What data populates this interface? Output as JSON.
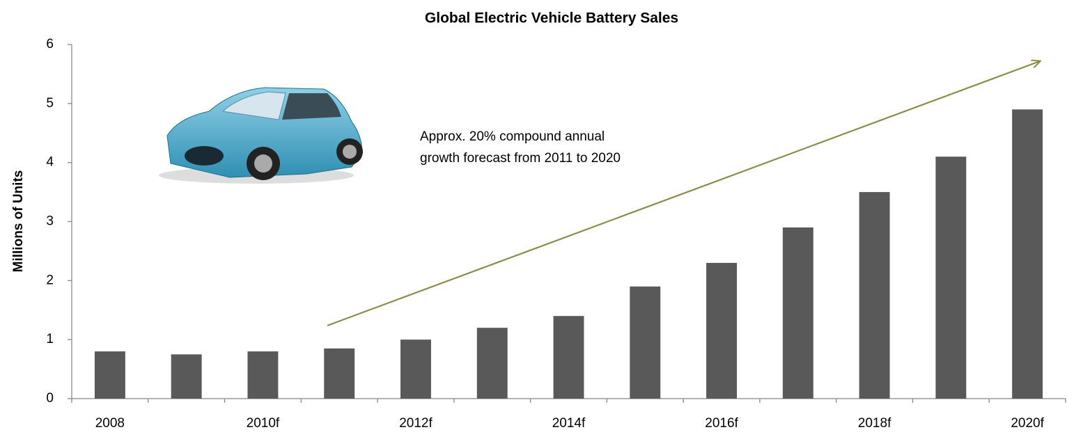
{
  "chart_data": {
    "type": "bar",
    "title": "Global Electric Vehicle Battery Sales",
    "y_label": "Millions of Units",
    "annotation": [
      "Approx. 20% compound annual",
      "growth forecast from 2011 to 2020"
    ],
    "categories": [
      "2008",
      null,
      "2010f",
      null,
      "2012f",
      null,
      "2014f",
      null,
      "2016f",
      null,
      "2018f",
      null,
      "2020f"
    ],
    "values": [
      0.8,
      0.75,
      0.8,
      0.85,
      1.0,
      1.2,
      1.4,
      1.9,
      2.3,
      2.9,
      3.5,
      4.1,
      4.9
    ],
    "color": "#595959",
    "ylim": [
      0,
      6
    ],
    "yticks": [
      0,
      1,
      2,
      3,
      4,
      5,
      6
    ],
    "grid": false
  }
}
